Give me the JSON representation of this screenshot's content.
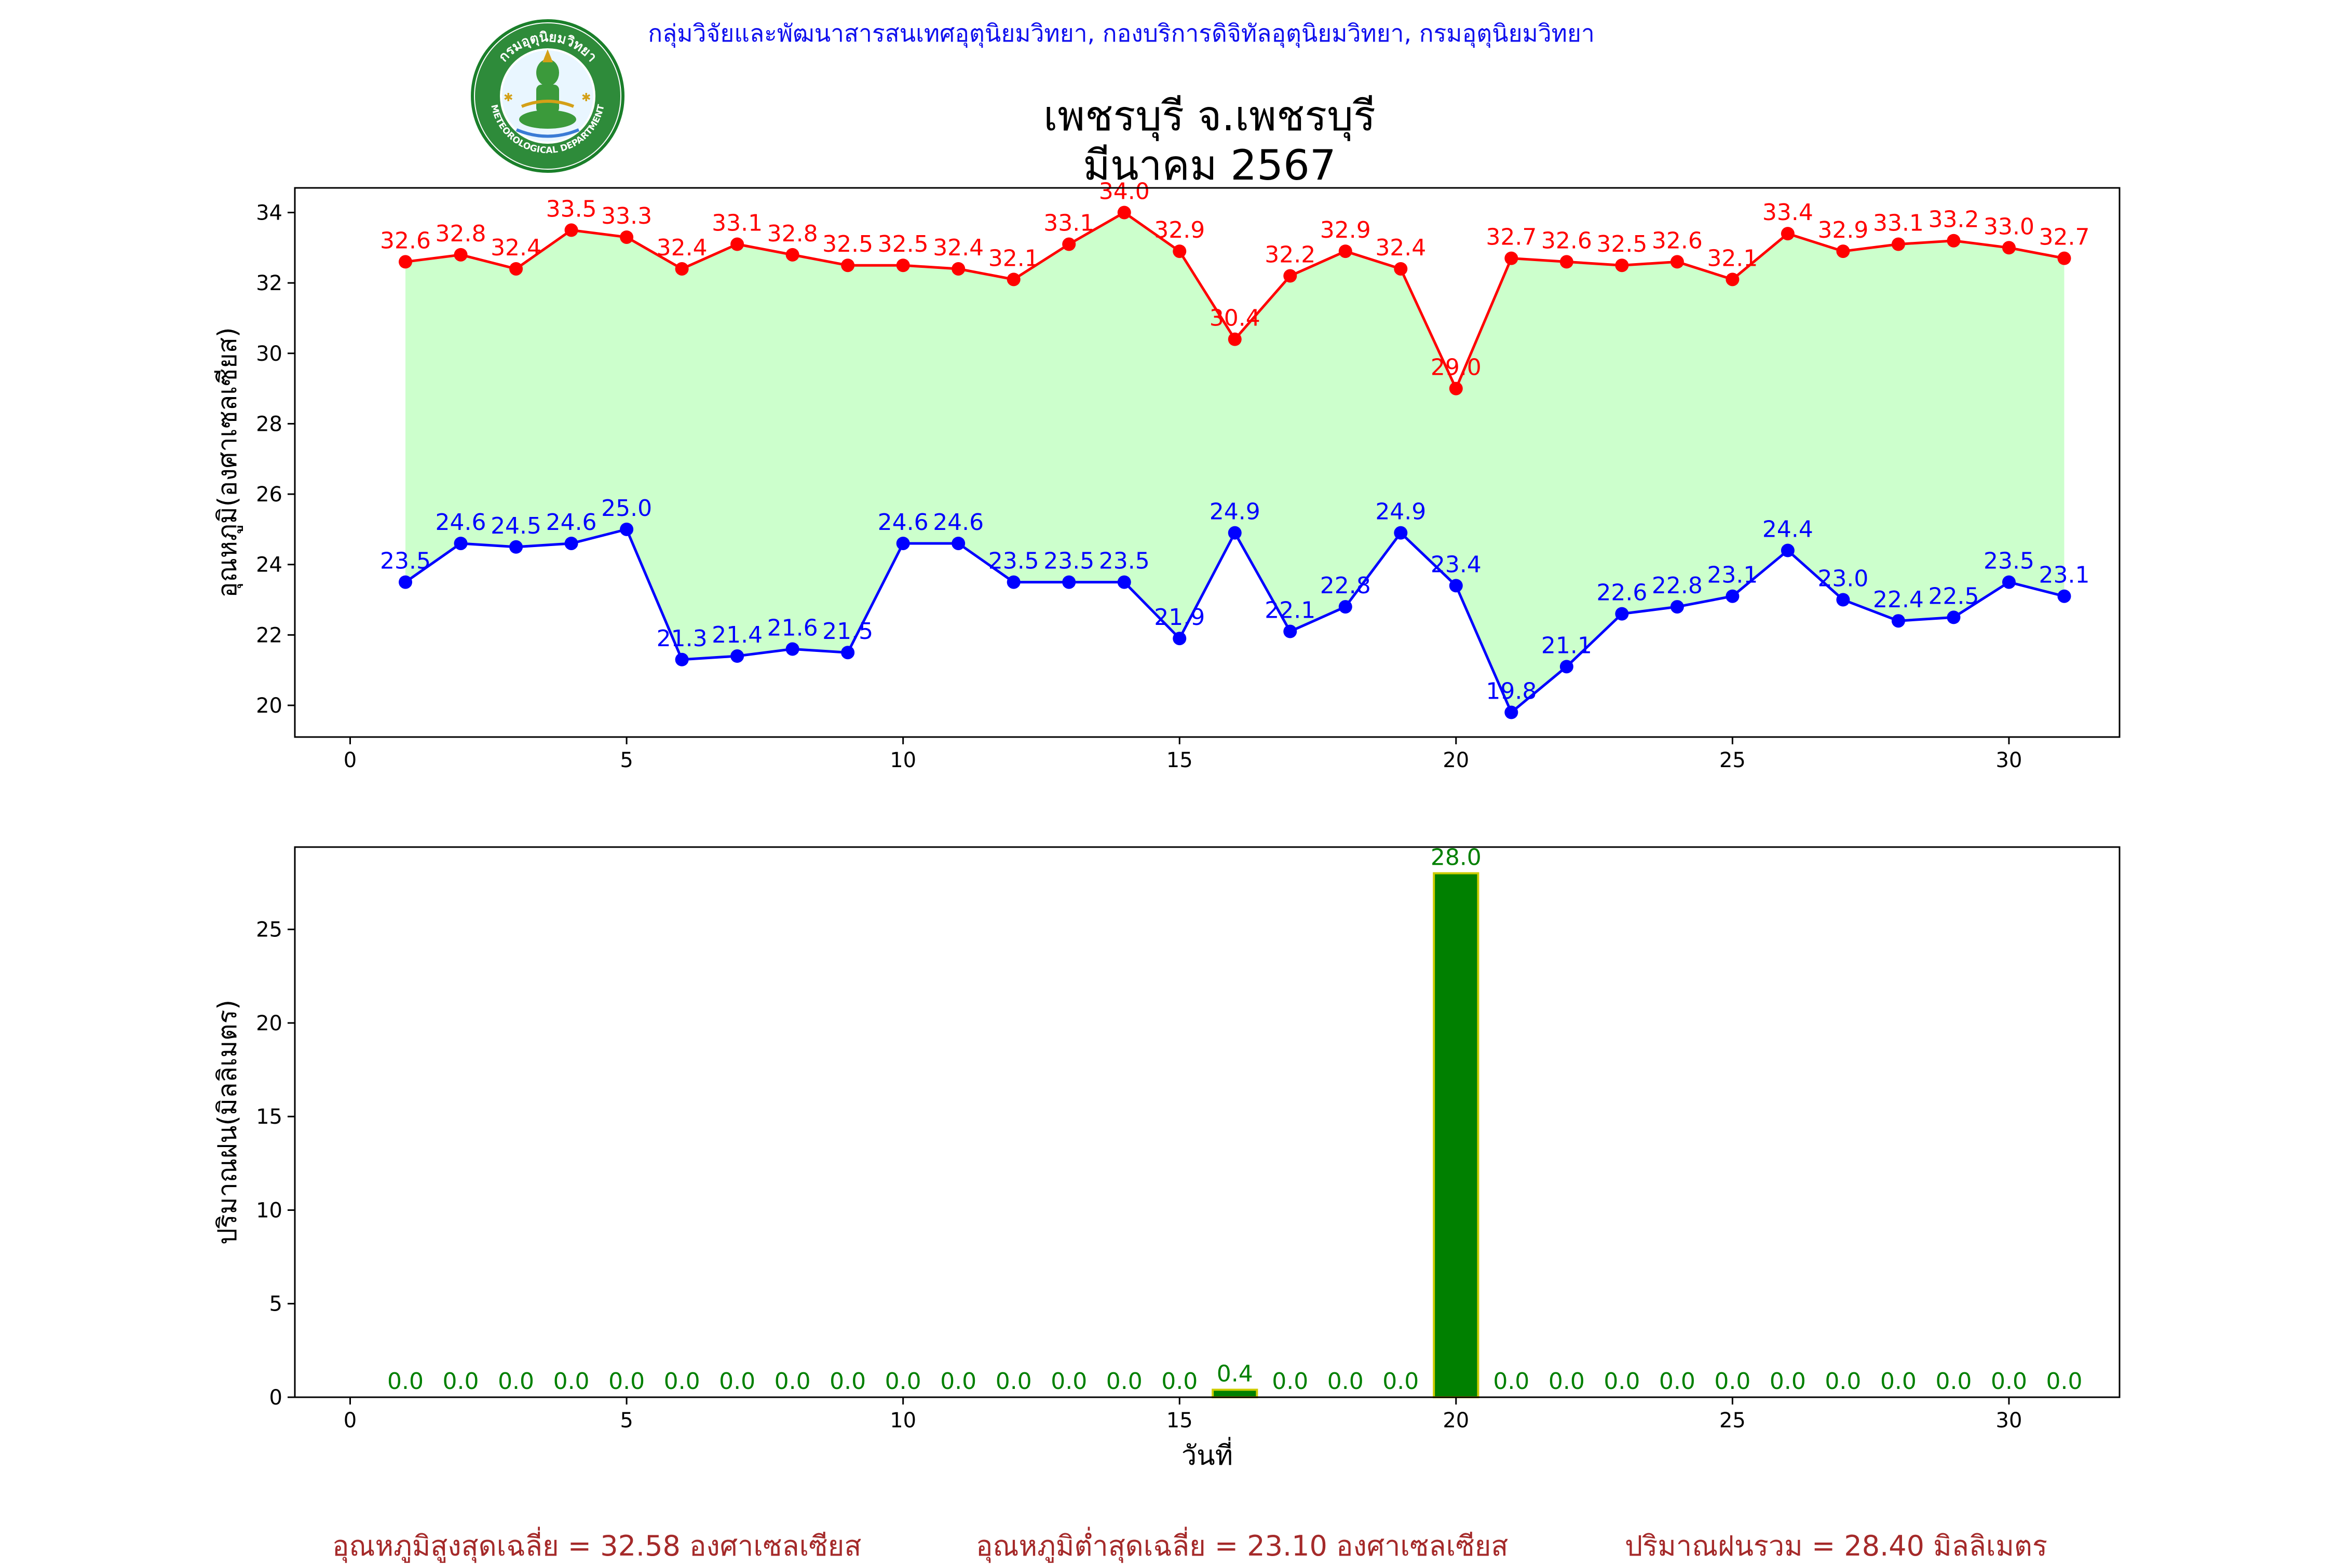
{
  "header": {
    "department": "กลุ่มวิจัยและพัฒนาสารสนเทศอุตุนิยมวิทยา, กองบริการดิจิทัลอุตุนิยมวิทยา, กรมอุตุนิยมวิทยา",
    "title_line1": "เพชรบุรี จ.เพชรบุรี",
    "title_line2": "มีนาคม 2567",
    "logo_text_top": "กรมอุตุนิยมวิทยา",
    "logo_text_bottom": "METEOROLOGICAL DEPARTMENT"
  },
  "footer": {
    "avg_max": "อุณหภูมิสูงสุดเฉลี่ย = 32.58 องศาเซลเซียส",
    "avg_min": "อุณหภูมิต่ำสุดเฉลี่ย = 23.10 องศาเซลเซียส",
    "total_rain": "ปริมาณฝนรวม = 28.40 มิลลิเมตร"
  },
  "colors": {
    "max_line": "#ff0000",
    "min_line": "#0000ff",
    "fill": "#ccffcc",
    "rain_bar": "#008000",
    "rain_edge": "#cccc00",
    "rain_label": "#008000",
    "footer_text": "#a52a2a",
    "header_text": "#1010ee"
  },
  "chart_data": [
    {
      "type": "line",
      "ylabel": "อุณหภูมิ(องศาเซลเซียส)",
      "xlabel": "",
      "xlim": [
        -1,
        32
      ],
      "ylim": [
        19.1,
        34.7
      ],
      "xticks": [
        0,
        5,
        10,
        15,
        20,
        25,
        30
      ],
      "yticks": [
        20,
        22,
        24,
        26,
        28,
        30,
        32,
        34
      ],
      "grid": false,
      "x": [
        1,
        2,
        3,
        4,
        5,
        6,
        7,
        8,
        9,
        10,
        11,
        12,
        13,
        14,
        15,
        16,
        17,
        18,
        19,
        20,
        21,
        22,
        23,
        24,
        25,
        26,
        27,
        28,
        29,
        30,
        31
      ],
      "series": [
        {
          "color": "#ff0000",
          "values": [
            32.6,
            32.8,
            32.4,
            33.5,
            33.3,
            32.4,
            33.1,
            32.8,
            32.5,
            32.5,
            32.4,
            32.1,
            33.1,
            34.0,
            32.9,
            30.4,
            32.2,
            32.9,
            32.4,
            29.0,
            32.7,
            32.6,
            32.5,
            32.6,
            32.1,
            33.4,
            32.9,
            33.1,
            33.2,
            33.0,
            32.7
          ]
        },
        {
          "color": "#0000ff",
          "values": [
            23.5,
            24.6,
            24.5,
            24.6,
            25.0,
            21.3,
            21.4,
            21.6,
            21.5,
            24.6,
            24.6,
            23.5,
            23.5,
            23.5,
            21.9,
            24.9,
            22.1,
            22.8,
            24.9,
            23.4,
            19.8,
            21.1,
            22.6,
            22.8,
            23.1,
            24.4,
            23.0,
            22.4,
            22.5,
            23.5,
            23.1
          ]
        }
      ]
    },
    {
      "type": "bar",
      "ylabel": "ปริมาณฝน(มิลลิเมตร)",
      "xlabel": "วันที่",
      "xlim": [
        -1,
        32
      ],
      "ylim": [
        0,
        29.4
      ],
      "xticks": [
        0,
        5,
        10,
        15,
        20,
        25,
        30
      ],
      "yticks": [
        0,
        5,
        10,
        15,
        20,
        25
      ],
      "grid": false,
      "x": [
        1,
        2,
        3,
        4,
        5,
        6,
        7,
        8,
        9,
        10,
        11,
        12,
        13,
        14,
        15,
        16,
        17,
        18,
        19,
        20,
        21,
        22,
        23,
        24,
        25,
        26,
        27,
        28,
        29,
        30,
        31
      ],
      "values": [
        0.0,
        0.0,
        0.0,
        0.0,
        0.0,
        0.0,
        0.0,
        0.0,
        0.0,
        0.0,
        0.0,
        0.0,
        0.0,
        0.0,
        0.0,
        0.4,
        0.0,
        0.0,
        0.0,
        28.0,
        0.0,
        0.0,
        0.0,
        0.0,
        0.0,
        0.0,
        0.0,
        0.0,
        0.0,
        0.0,
        0.0
      ]
    }
  ]
}
